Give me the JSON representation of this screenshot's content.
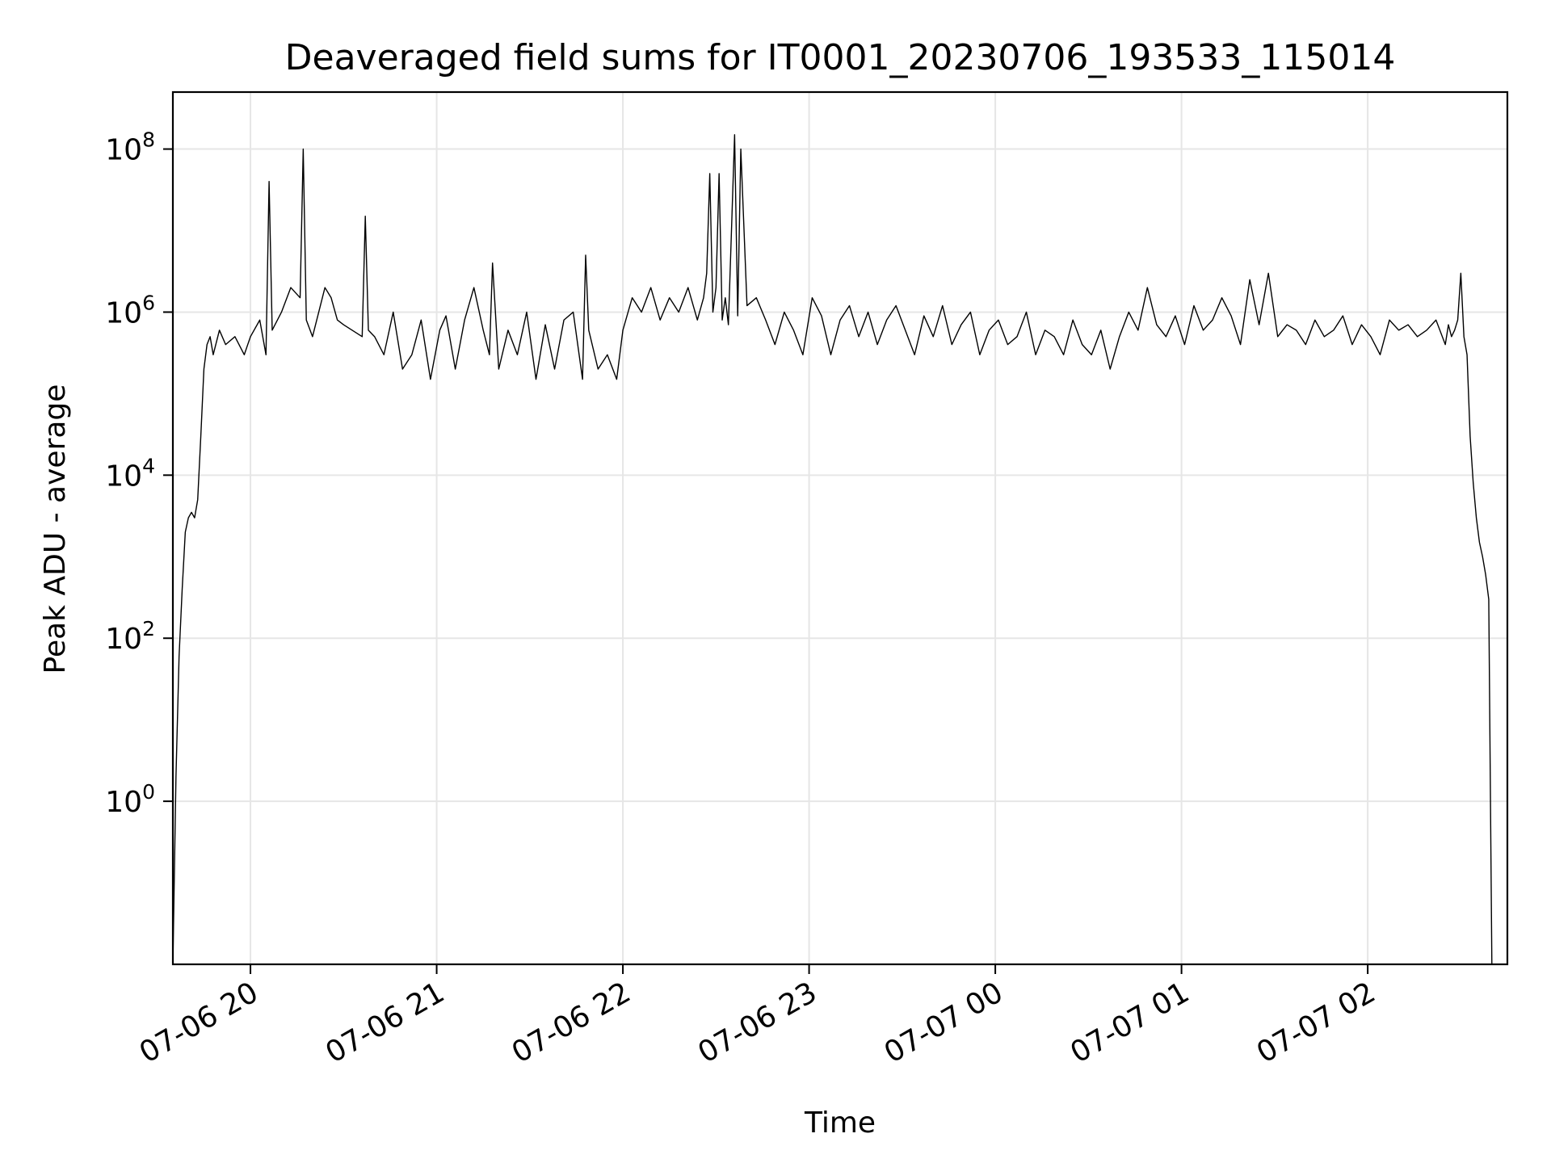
{
  "chart_data": {
    "type": "line",
    "title": "Deaveraged field sums for IT0001_20230706_193533_115014",
    "xlabel": "Time",
    "ylabel": "Peak ADU - average",
    "yscale": "log",
    "ylim": [
      0.01,
      500000000
    ],
    "xlim": [
      "2023-07-06 19:35",
      "2023-07-07 02:45"
    ],
    "grid": true,
    "line_color": "#000000",
    "x_ticks": [
      {
        "label": "07-06 20",
        "value": "2023-07-06 20:00"
      },
      {
        "label": "07-06 21",
        "value": "2023-07-06 21:00"
      },
      {
        "label": "07-06 22",
        "value": "2023-07-06 22:00"
      },
      {
        "label": "07-06 23",
        "value": "2023-07-06 23:00"
      },
      {
        "label": "07-07 00",
        "value": "2023-07-07 00:00"
      },
      {
        "label": "07-07 01",
        "value": "2023-07-07 01:00"
      },
      {
        "label": "07-07 02",
        "value": "2023-07-07 02:00"
      }
    ],
    "y_ticks": [
      {
        "base": "10",
        "exp": "0",
        "value": 1
      },
      {
        "base": "10",
        "exp": "2",
        "value": 100
      },
      {
        "base": "10",
        "exp": "4",
        "value": 10000
      },
      {
        "base": "10",
        "exp": "6",
        "value": 1000000
      },
      {
        "base": "10",
        "exp": "8",
        "value": 100000000
      }
    ],
    "series": [
      {
        "x": [
          "2023-07-06 19:35",
          "2023-07-06 19:36",
          "2023-07-06 19:37",
          "2023-07-06 19:38",
          "2023-07-06 19:39",
          "2023-07-06 19:40",
          "2023-07-06 19:41",
          "2023-07-06 19:42",
          "2023-07-06 19:43",
          "2023-07-06 19:44",
          "2023-07-06 19:45",
          "2023-07-06 19:46",
          "2023-07-06 19:47",
          "2023-07-06 19:48",
          "2023-07-06 19:50",
          "2023-07-06 19:52",
          "2023-07-06 19:55",
          "2023-07-06 19:58",
          "2023-07-06 20:00",
          "2023-07-06 20:03",
          "2023-07-06 20:05",
          "2023-07-06 20:06",
          "2023-07-06 20:07",
          "2023-07-06 20:10",
          "2023-07-06 20:13",
          "2023-07-06 20:16",
          "2023-07-06 20:17",
          "2023-07-06 20:18",
          "2023-07-06 20:20",
          "2023-07-06 20:22",
          "2023-07-06 20:24",
          "2023-07-06 20:26",
          "2023-07-06 20:28",
          "2023-07-06 20:30",
          "2023-07-06 20:36",
          "2023-07-06 20:37",
          "2023-07-06 20:38",
          "2023-07-06 20:40",
          "2023-07-06 20:43",
          "2023-07-06 20:46",
          "2023-07-06 20:49",
          "2023-07-06 20:52",
          "2023-07-06 20:55",
          "2023-07-06 20:58",
          "2023-07-06 21:01",
          "2023-07-06 21:03",
          "2023-07-06 21:06",
          "2023-07-06 21:09",
          "2023-07-06 21:12",
          "2023-07-06 21:15",
          "2023-07-06 21:17",
          "2023-07-06 21:18",
          "2023-07-06 21:20",
          "2023-07-06 21:23",
          "2023-07-06 21:26",
          "2023-07-06 21:29",
          "2023-07-06 21:32",
          "2023-07-06 21:35",
          "2023-07-06 21:38",
          "2023-07-06 21:41",
          "2023-07-06 21:44",
          "2023-07-06 21:47",
          "2023-07-06 21:48",
          "2023-07-06 21:49",
          "2023-07-06 21:52",
          "2023-07-06 21:55",
          "2023-07-06 21:58",
          "2023-07-06 22:00",
          "2023-07-06 22:03",
          "2023-07-06 22:06",
          "2023-07-06 22:09",
          "2023-07-06 22:12",
          "2023-07-06 22:15",
          "2023-07-06 22:18",
          "2023-07-06 22:21",
          "2023-07-06 22:24",
          "2023-07-06 22:26",
          "2023-07-06 22:27",
          "2023-07-06 22:28",
          "2023-07-06 22:29",
          "2023-07-06 22:30",
          "2023-07-06 22:31",
          "2023-07-06 22:32",
          "2023-07-06 22:33",
          "2023-07-06 22:34",
          "2023-07-06 22:36",
          "2023-07-06 22:37",
          "2023-07-06 22:38",
          "2023-07-06 22:40",
          "2023-07-06 22:43",
          "2023-07-06 22:46",
          "2023-07-06 22:49",
          "2023-07-06 22:52",
          "2023-07-06 22:55",
          "2023-07-06 22:58",
          "2023-07-06 23:01",
          "2023-07-06 23:04",
          "2023-07-06 23:07",
          "2023-07-06 23:10",
          "2023-07-06 23:13",
          "2023-07-06 23:16",
          "2023-07-06 23:19",
          "2023-07-06 23:22",
          "2023-07-06 23:25",
          "2023-07-06 23:28",
          "2023-07-06 23:31",
          "2023-07-06 23:34",
          "2023-07-06 23:37",
          "2023-07-06 23:40",
          "2023-07-06 23:43",
          "2023-07-06 23:46",
          "2023-07-06 23:49",
          "2023-07-06 23:52",
          "2023-07-06 23:55",
          "2023-07-06 23:58",
          "2023-07-07 00:01",
          "2023-07-07 00:04",
          "2023-07-07 00:07",
          "2023-07-07 00:10",
          "2023-07-07 00:13",
          "2023-07-07 00:16",
          "2023-07-07 00:19",
          "2023-07-07 00:22",
          "2023-07-07 00:25",
          "2023-07-07 00:28",
          "2023-07-07 00:31",
          "2023-07-07 00:34",
          "2023-07-07 00:37",
          "2023-07-07 00:40",
          "2023-07-07 00:43",
          "2023-07-07 00:46",
          "2023-07-07 00:49",
          "2023-07-07 00:52",
          "2023-07-07 00:55",
          "2023-07-07 00:58",
          "2023-07-07 01:01",
          "2023-07-07 01:04",
          "2023-07-07 01:07",
          "2023-07-07 01:10",
          "2023-07-07 01:13",
          "2023-07-07 01:16",
          "2023-07-07 01:19",
          "2023-07-07 01:22",
          "2023-07-07 01:25",
          "2023-07-07 01:28",
          "2023-07-07 01:31",
          "2023-07-07 01:34",
          "2023-07-07 01:37",
          "2023-07-07 01:40",
          "2023-07-07 01:43",
          "2023-07-07 01:46",
          "2023-07-07 01:49",
          "2023-07-07 01:52",
          "2023-07-07 01:55",
          "2023-07-07 01:58",
          "2023-07-07 02:01",
          "2023-07-07 02:04",
          "2023-07-07 02:07",
          "2023-07-07 02:10",
          "2023-07-07 02:13",
          "2023-07-07 02:16",
          "2023-07-07 02:19",
          "2023-07-07 02:22",
          "2023-07-07 02:25",
          "2023-07-07 02:26",
          "2023-07-07 02:27",
          "2023-07-07 02:28",
          "2023-07-07 02:29",
          "2023-07-07 02:30",
          "2023-07-07 02:31",
          "2023-07-07 02:32",
          "2023-07-07 02:33",
          "2023-07-07 02:34",
          "2023-07-07 02:35",
          "2023-07-07 02:36",
          "2023-07-07 02:37",
          "2023-07-07 02:38",
          "2023-07-07 02:39",
          "2023-07-07 02:40"
        ],
        "values": [
          0.01,
          2,
          60,
          400,
          2000,
          3000,
          3500,
          3000,
          5000,
          30000,
          200000,
          400000,
          500000,
          300000,
          600000,
          400000,
          500000,
          300000,
          500000,
          800000,
          300000,
          40000000,
          600000,
          1000000,
          2000000,
          1500000,
          100000000,
          800000,
          500000,
          1000000,
          2000000,
          1500000,
          800000,
          700000,
          500000,
          15000000,
          600000,
          500000,
          300000,
          1000000,
          200000,
          300000,
          800000,
          150000,
          600000,
          900000,
          200000,
          800000,
          2000000,
          600000,
          300000,
          4000000,
          200000,
          600000,
          300000,
          1000000,
          150000,
          700000,
          200000,
          800000,
          1000000,
          150000,
          5000000,
          600000,
          200000,
          300000,
          150000,
          600000,
          1500000,
          1000000,
          2000000,
          800000,
          1500000,
          1000000,
          2000000,
          800000,
          1500000,
          3000000,
          50000000,
          1000000,
          2000000,
          50000000,
          800000,
          1500000,
          700000,
          150000000,
          900000,
          100000000,
          1200000,
          1500000,
          800000,
          400000,
          1000000,
          600000,
          300000,
          1500000,
          900000,
          300000,
          800000,
          1200000,
          500000,
          1000000,
          400000,
          800000,
          1200000,
          600000,
          300000,
          900000,
          500000,
          1200000,
          400000,
          700000,
          1000000,
          300000,
          600000,
          800000,
          400000,
          500000,
          1000000,
          300000,
          600000,
          500000,
          300000,
          800000,
          400000,
          300000,
          600000,
          200000,
          500000,
          1000000,
          600000,
          2000000,
          700000,
          500000,
          900000,
          400000,
          1200000,
          600000,
          800000,
          1500000,
          900000,
          400000,
          2500000,
          700000,
          3000000,
          500000,
          700000,
          600000,
          400000,
          800000,
          500000,
          600000,
          900000,
          400000,
          700000,
          500000,
          300000,
          800000,
          600000,
          700000,
          500000,
          600000,
          800000,
          400000,
          700000,
          500000,
          600000,
          800000,
          3000000,
          500000,
          300000,
          30000,
          8000,
          3000,
          1500,
          1000,
          600,
          300,
          0.01
        ]
      }
    ]
  }
}
